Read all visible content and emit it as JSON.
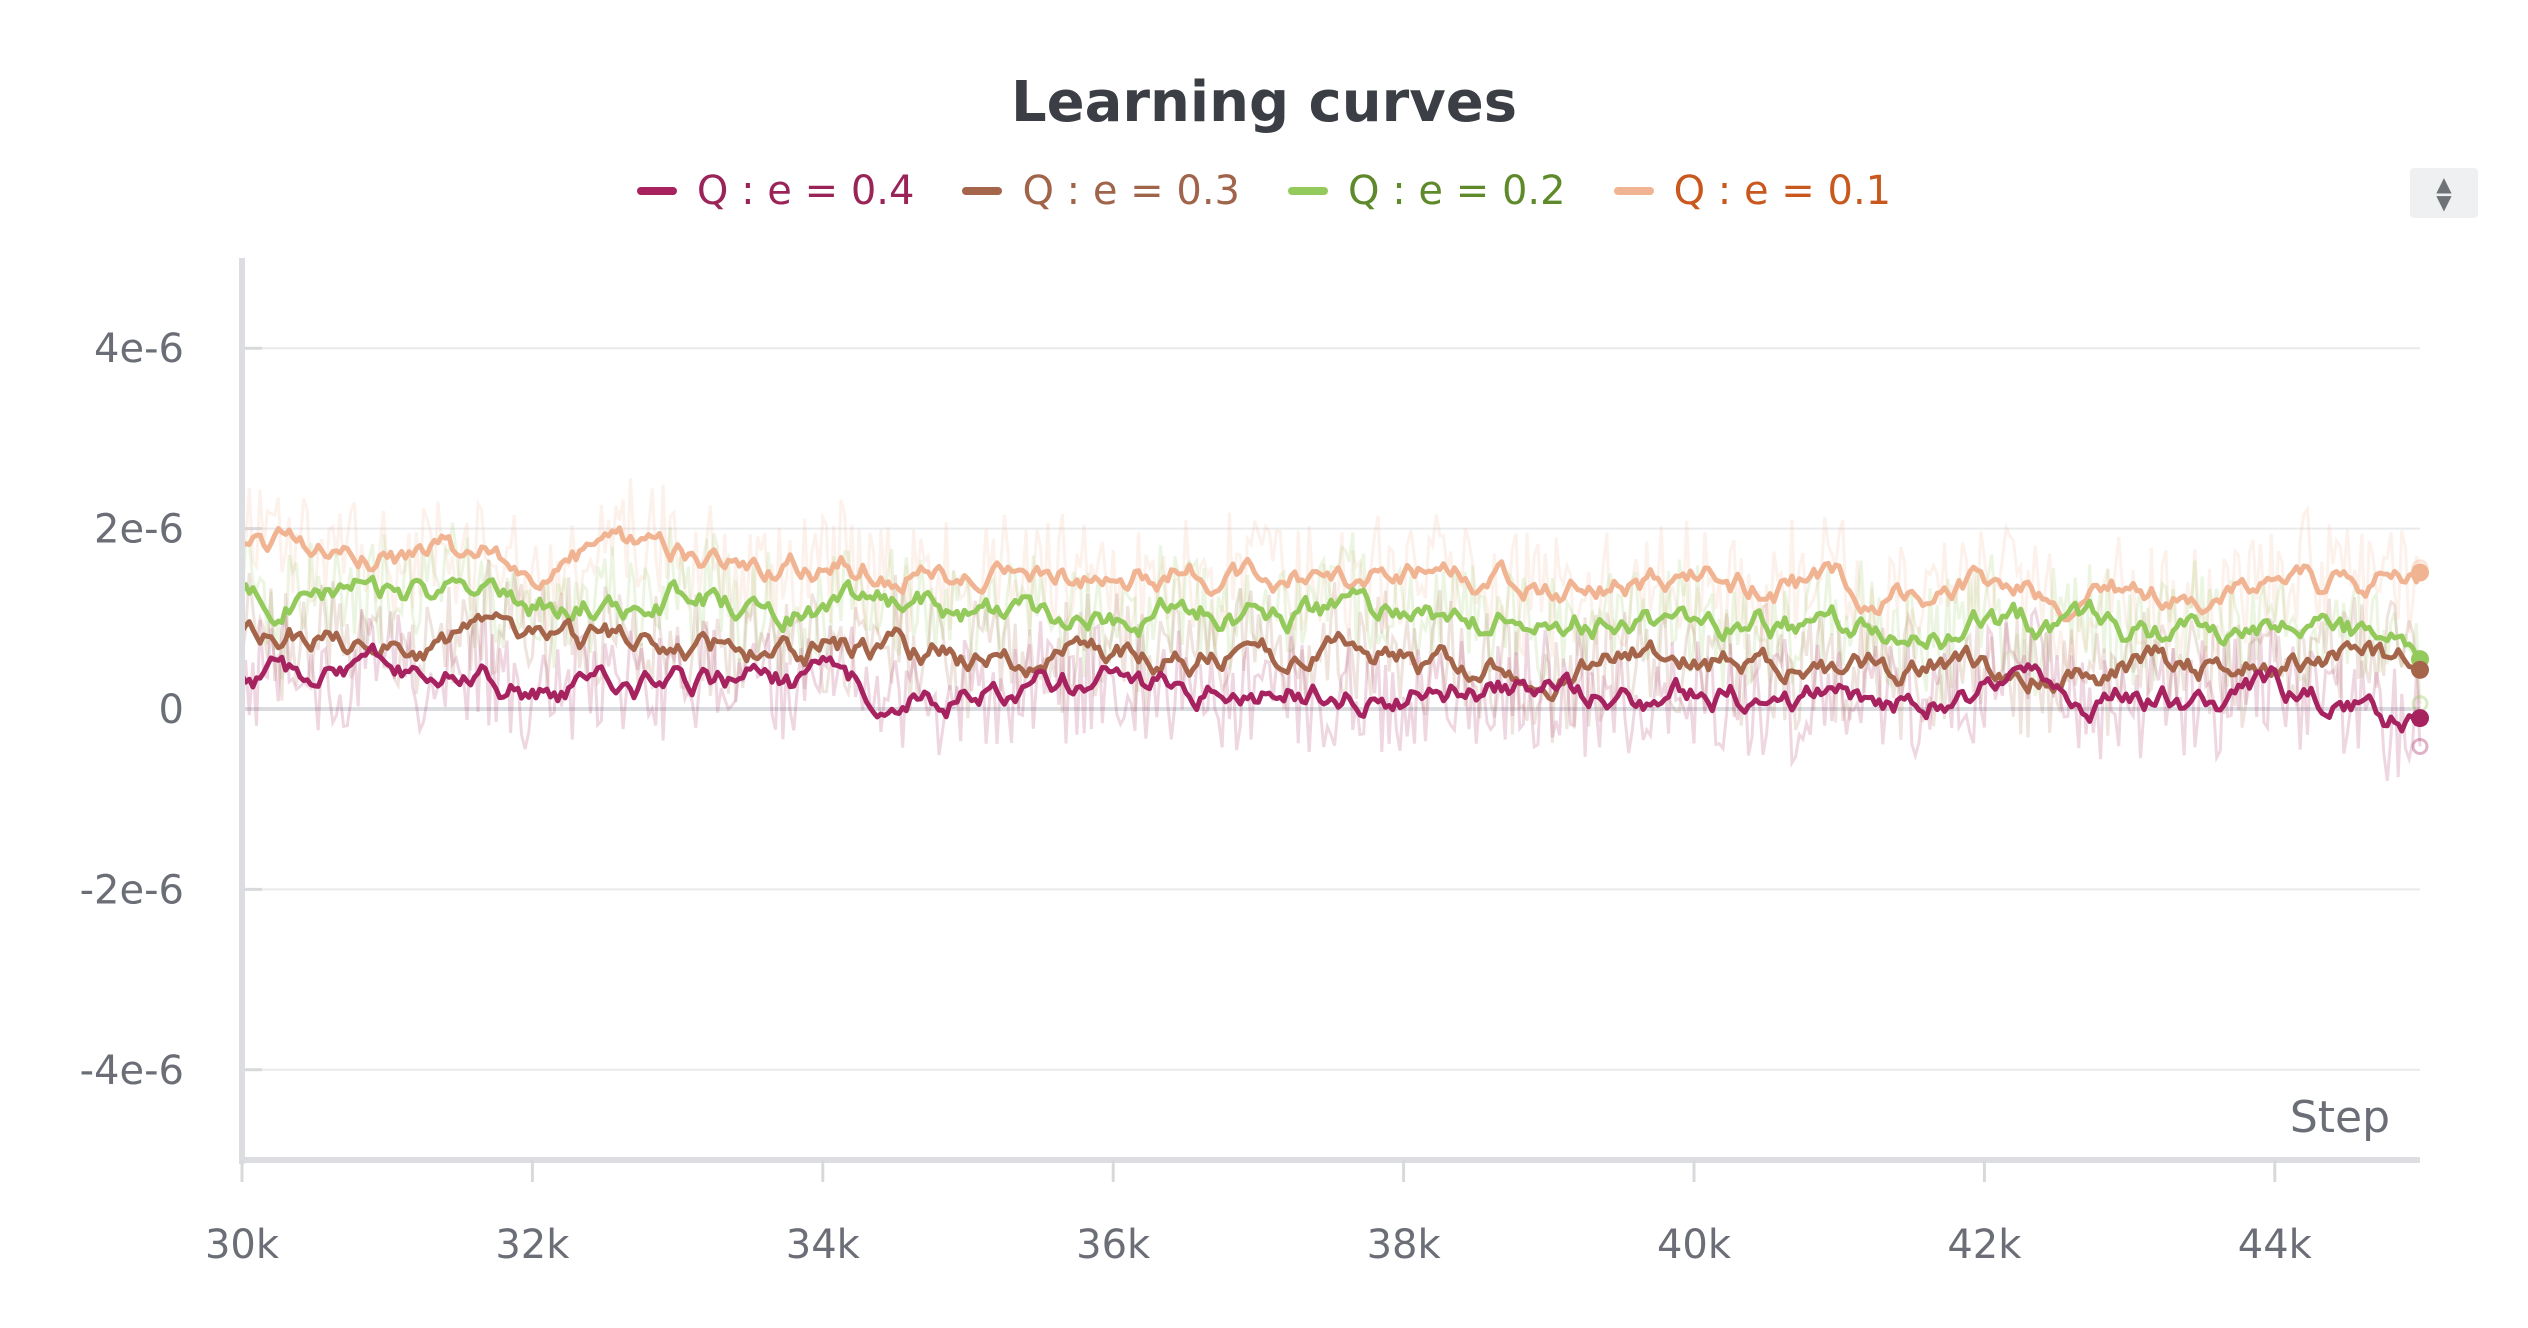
{
  "chart_data": {
    "type": "line",
    "title": "Learning curves",
    "xlabel": "Step",
    "ylabel": "",
    "xlim": [
      30000,
      45000
    ],
    "ylim": [
      -5e-06,
      5e-06
    ],
    "x_ticks": [
      {
        "value": 30000,
        "label": "30k"
      },
      {
        "value": 32000,
        "label": "32k"
      },
      {
        "value": 34000,
        "label": "34k"
      },
      {
        "value": 36000,
        "label": "36k"
      },
      {
        "value": 38000,
        "label": "38k"
      },
      {
        "value": 40000,
        "label": "40k"
      },
      {
        "value": 42000,
        "label": "42k"
      },
      {
        "value": 44000,
        "label": "44k"
      }
    ],
    "y_ticks": [
      {
        "value": 4e-06,
        "label": "4e-6"
      },
      {
        "value": 2e-06,
        "label": "2e-6"
      },
      {
        "value": 0,
        "label": "0"
      },
      {
        "value": -2e-06,
        "label": "-2e-6"
      },
      {
        "value": -4e-06,
        "label": "-4e-6"
      }
    ],
    "grid": true,
    "legend_position": "top-center",
    "x": [
      30000,
      31000,
      32000,
      33000,
      34000,
      35000,
      36000,
      37000,
      38000,
      39000,
      40000,
      41000,
      42000,
      43000,
      44000,
      45000
    ],
    "series": [
      {
        "name": "Q : e = 0.4",
        "color": "#a6235f",
        "text_color": "#9a2458",
        "values": [
          3e-07,
          3.5e-07,
          2e-07,
          3e-07,
          2.5e-07,
          2e-07,
          3e-07,
          1.5e-07,
          2e-07,
          1.5e-07,
          2e-07,
          1e-07,
          2e-07,
          1e-07,
          2e-07,
          -2e-07
        ]
      },
      {
        "name": "Q : e = 0.3",
        "color": "#a4654a",
        "text_color": "#a0644a",
        "values": [
          8e-07,
          8.5e-07,
          7.5e-07,
          6.5e-07,
          7e-07,
          6e-07,
          5.5e-07,
          5.5e-07,
          6e-07,
          5e-07,
          6e-07,
          4.5e-07,
          5e-07,
          4.5e-07,
          5e-07,
          5e-07
        ]
      },
      {
        "name": "Q : e = 0.2",
        "color": "#94c95b",
        "text_color": "#5e8a2b",
        "values": [
          1.25e-06,
          1.3e-06,
          1.1e-06,
          1.25e-06,
          1.15e-06,
          1.1e-06,
          1.05e-06,
          1.1e-06,
          1e-06,
          9.5e-07,
          1.05e-06,
          8.5e-07,
          9e-07,
          8.5e-07,
          8e-07,
          7.5e-07
        ]
      },
      {
        "name": "Q : e = 0.1",
        "color": "#f1b492",
        "text_color": "#c8581e",
        "values": [
          1.8e-06,
          1.75e-06,
          1.6e-06,
          1.8e-06,
          1.6e-06,
          1.55e-06,
          1.5e-06,
          1.55e-06,
          1.4e-06,
          1.4e-06,
          1.35e-06,
          1.3e-06,
          1.35e-06,
          1.25e-06,
          1.3e-06,
          1.45e-06
        ]
      }
    ]
  }
}
